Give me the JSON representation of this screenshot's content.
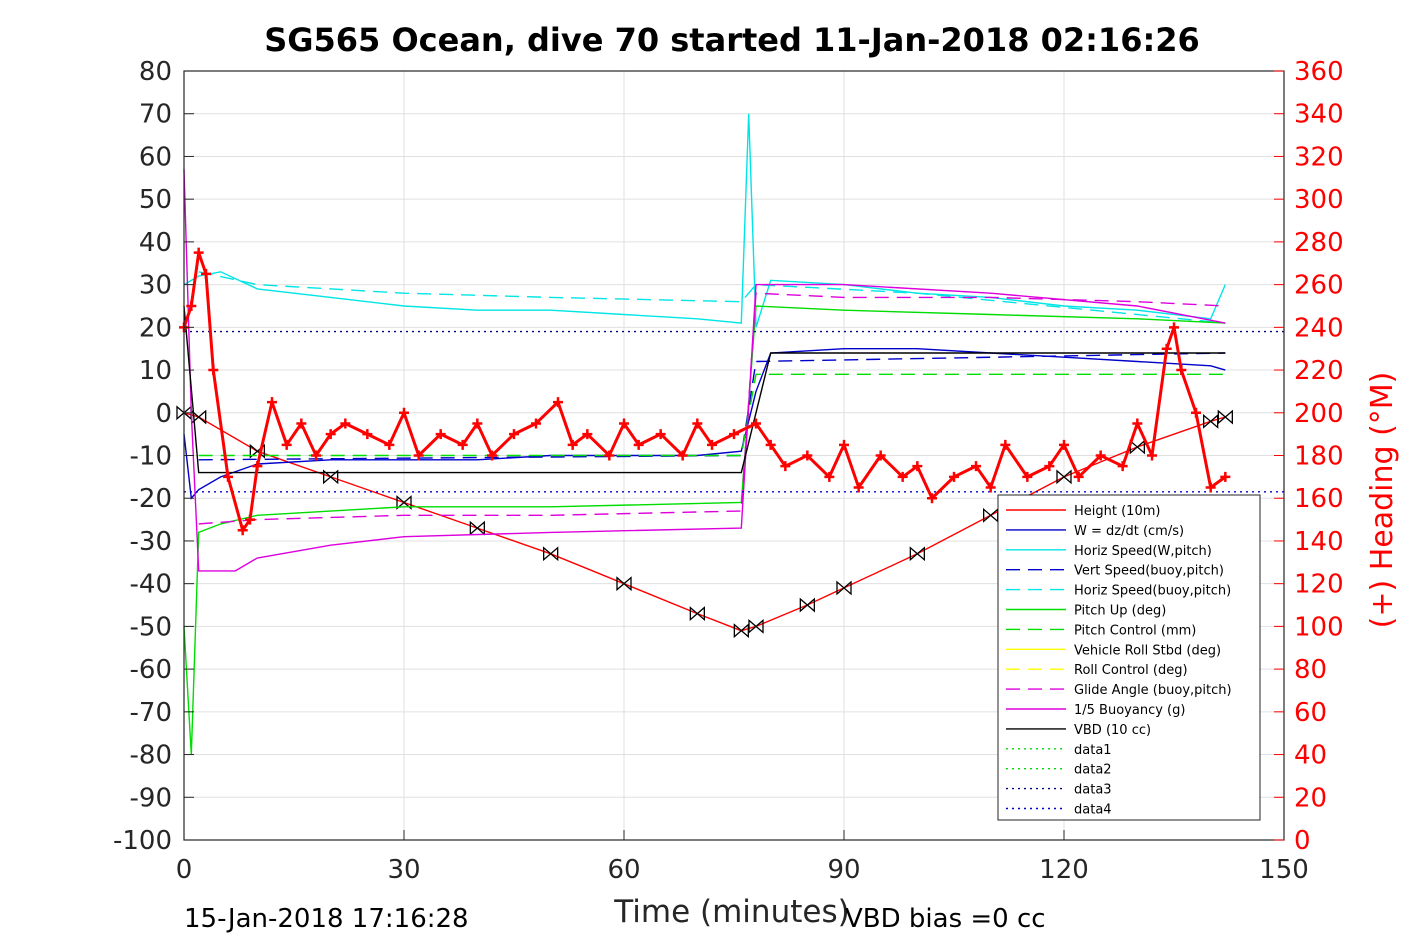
{
  "chart_data": {
    "type": "line",
    "title": "SG565 Ocean, dive 70 started 11-Jan-2018 02:16:26",
    "xlabel": "Time (minutes)",
    "ylabel_right": "(+) Heading (°M)",
    "xlim": [
      0,
      150
    ],
    "ylim": [
      -100,
      80
    ],
    "ylim_right": [
      0,
      360
    ],
    "x_ticks": [
      0,
      30,
      60,
      90,
      120,
      150
    ],
    "y_ticks": [
      80,
      70,
      60,
      50,
      40,
      30,
      20,
      10,
      0,
      -10,
      -20,
      -30,
      -40,
      -50,
      -60,
      -70,
      -80,
      -90,
      -100
    ],
    "y_ticks_right": [
      360,
      340,
      320,
      300,
      280,
      260,
      240,
      220,
      200,
      180,
      160,
      140,
      120,
      100,
      80,
      60,
      40,
      20,
      0
    ],
    "grid": true,
    "legend_position": "bottom-right",
    "legend": [
      {
        "name": "Height (10m)",
        "color": "#ff0000",
        "style": "solid"
      },
      {
        "name": "W = dz/dt (cm/s)",
        "color": "#0000cc",
        "style": "solid"
      },
      {
        "name": "Horiz Speed(W,pitch)",
        "color": "#00e5e5",
        "style": "solid"
      },
      {
        "name": "Vert Speed(buoy,pitch)",
        "color": "#0000cc",
        "style": "dashed"
      },
      {
        "name": "Horiz Speed(buoy,pitch)",
        "color": "#00e5e5",
        "style": "dashed"
      },
      {
        "name": "Pitch Up (deg)",
        "color": "#00dd00",
        "style": "solid"
      },
      {
        "name": "Pitch Control (mm)",
        "color": "#00dd00",
        "style": "dashed"
      },
      {
        "name": "Vehicle Roll Stbd (deg)",
        "color": "#ffff00",
        "style": "solid"
      },
      {
        "name": "Roll Control (deg)",
        "color": "#ffff00",
        "style": "dashed"
      },
      {
        "name": "Glide Angle (buoy,pitch)",
        "color": "#dd00dd",
        "style": "dashed"
      },
      {
        "name": "1/5 Buoyancy (g)",
        "color": "#dd00dd",
        "style": "solid"
      },
      {
        "name": "VBD (10 cc)",
        "color": "#000000",
        "style": "solid"
      },
      {
        "name": "data1",
        "color": "#00dd00",
        "style": "dotted"
      },
      {
        "name": "data2",
        "color": "#00dd00",
        "style": "dotted"
      },
      {
        "name": "data3",
        "color": "#000080",
        "style": "dotted"
      },
      {
        "name": "data4",
        "color": "#0000cc",
        "style": "dotted"
      }
    ],
    "series": [
      {
        "name": "Height (10m)",
        "x": [
          0,
          2,
          10,
          20,
          30,
          40,
          50,
          60,
          70,
          76,
          78,
          85,
          90,
          100,
          110,
          120,
          130,
          140,
          142
        ],
        "y": [
          0,
          -1,
          -9,
          -15,
          -21,
          -27,
          -33,
          -40,
          -47,
          -51,
          -50,
          -45,
          -41,
          -33,
          -24,
          -15,
          -8,
          -2,
          -1
        ]
      },
      {
        "name": "W = dz/dt (cm/s)",
        "x": [
          0,
          1,
          2,
          5,
          10,
          20,
          30,
          40,
          50,
          60,
          70,
          76,
          78,
          80,
          90,
          100,
          110,
          120,
          130,
          140,
          142
        ],
        "y": [
          -5,
          -20,
          -18,
          -15,
          -12,
          -11,
          -11,
          -11,
          -10,
          -10,
          -10,
          -9,
          5,
          14,
          15,
          15,
          14,
          13,
          12,
          11,
          10
        ]
      },
      {
        "name": "Horiz Speed(W,pitch)",
        "x": [
          0,
          2,
          5,
          10,
          20,
          30,
          40,
          50,
          60,
          70,
          76,
          77,
          78,
          80,
          90,
          100,
          110,
          120,
          130,
          140,
          142
        ],
        "y": [
          30,
          32,
          33,
          29,
          27,
          25,
          24,
          24,
          23,
          22,
          21,
          70,
          20,
          31,
          30,
          28,
          27,
          25,
          24,
          22,
          30
        ]
      },
      {
        "name": "Vert Speed(buoy,pitch)",
        "x": [
          2,
          76,
          78,
          142
        ],
        "y": [
          -11,
          -10,
          12,
          14
        ]
      },
      {
        "name": "Horiz Speed(buoy,pitch)",
        "x": [
          2,
          10,
          30,
          50,
          76,
          78,
          100,
          142
        ],
        "y": [
          33,
          30,
          28,
          27,
          26,
          30,
          28,
          21
        ]
      },
      {
        "name": "Pitch Up (deg)",
        "x": [
          0,
          1,
          2,
          5,
          10,
          30,
          50,
          76,
          78,
          90,
          110,
          130,
          142
        ],
        "y": [
          -50,
          -80,
          -28,
          -26,
          -24,
          -22,
          -22,
          -21,
          25,
          24,
          23,
          22,
          21
        ]
      },
      {
        "name": "Pitch Control (mm)",
        "x": [
          2,
          76,
          78,
          142
        ],
        "y": [
          -10,
          -10,
          9,
          9
        ]
      },
      {
        "name": "Glide Angle (buoy,pitch)",
        "x": [
          2,
          10,
          30,
          50,
          76,
          78,
          90,
          110,
          130,
          142
        ],
        "y": [
          -26,
          -25,
          -24,
          -24,
          -23,
          28,
          27,
          27,
          26,
          25
        ]
      },
      {
        "name": "1/5 Buoyancy (g)",
        "x": [
          0,
          1,
          2,
          7,
          10,
          20,
          30,
          50,
          76,
          78,
          90,
          110,
          130,
          142
        ],
        "y": [
          57,
          0,
          -37,
          -37,
          -34,
          -31,
          -29,
          -28,
          -27,
          30,
          30,
          28,
          25,
          21
        ]
      },
      {
        "name": "VBD (10 cc)",
        "x": [
          0,
          2,
          76,
          80,
          142
        ],
        "y": [
          25,
          -14,
          -14,
          14,
          14
        ]
      },
      {
        "name": "data3",
        "x": [
          0,
          150
        ],
        "y": [
          19,
          19
        ]
      },
      {
        "name": "data4",
        "x": [
          0,
          150
        ],
        "y": [
          -18.5,
          -18.5
        ]
      },
      {
        "name": "Heading",
        "axis": "right",
        "x": [
          0,
          1,
          2,
          3,
          4,
          6,
          8,
          9,
          10,
          12,
          14,
          16,
          18,
          20,
          22,
          25,
          28,
          30,
          32,
          35,
          38,
          40,
          42,
          45,
          48,
          51,
          53,
          55,
          58,
          60,
          62,
          65,
          68,
          70,
          72,
          75,
          78,
          80,
          82,
          85,
          88,
          90,
          92,
          95,
          98,
          100,
          102,
          105,
          108,
          110,
          112,
          115,
          118,
          120,
          122,
          125,
          128,
          130,
          132,
          134,
          135,
          136,
          138,
          140,
          142
        ],
        "y": [
          240,
          250,
          275,
          265,
          220,
          170,
          145,
          150,
          175,
          205,
          185,
          195,
          180,
          190,
          195,
          190,
          185,
          200,
          180,
          190,
          185,
          195,
          180,
          190,
          195,
          205,
          185,
          190,
          180,
          195,
          185,
          190,
          180,
          195,
          185,
          190,
          195,
          185,
          175,
          180,
          170,
          185,
          165,
          180,
          170,
          175,
          160,
          170,
          175,
          165,
          185,
          170,
          175,
          185,
          170,
          180,
          175,
          195,
          180,
          230,
          240,
          220,
          200,
          165,
          170
        ]
      }
    ]
  },
  "footer": {
    "timestamp": "15-Jan-2018 17:16:28",
    "vbd_bias": "VBD bias =0 cc"
  }
}
